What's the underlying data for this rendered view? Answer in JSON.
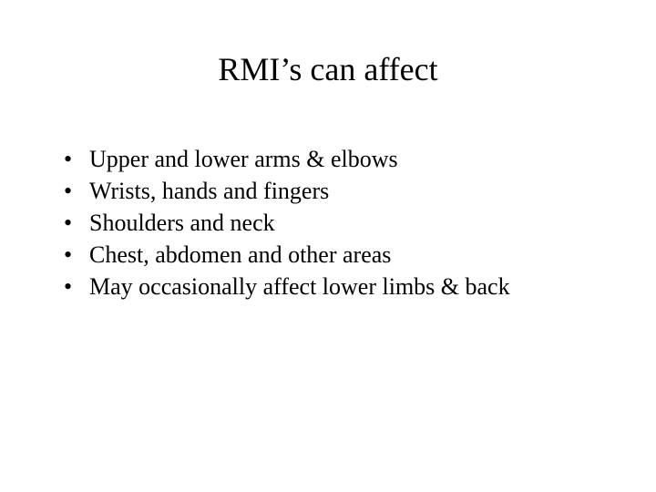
{
  "slide": {
    "title": "RMI’s can affect",
    "bullets": [
      "Upper and lower arms & elbows",
      "Wrists, hands and fingers",
      "Shoulders and neck",
      "Chest, abdomen and other areas",
      "May occasionally affect lower limbs & back"
    ],
    "title_fontsize": 36,
    "body_fontsize": 26,
    "text_color": "#000000",
    "background_color": "#ffffff",
    "font_family": "Times New Roman"
  }
}
